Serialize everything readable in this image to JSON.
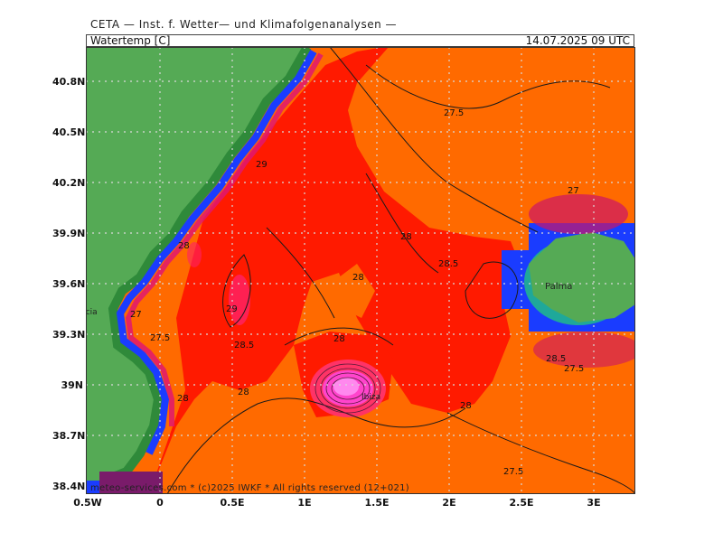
{
  "header": {
    "institute": "CETA — Inst. f. Wetter— und Klimafolgenanalysen —",
    "variable": "Watertemp [C]",
    "datetime": "14.07.2025 09 UTC"
  },
  "axes": {
    "lat_ticks": [
      "40.8N",
      "40.5N",
      "40.2N",
      "39.9N",
      "39.6N",
      "39.3N",
      "39N",
      "38.7N",
      "38.4N"
    ],
    "lon_ticks": [
      "0.5W",
      "0",
      "0.5E",
      "1E",
      "1.5E",
      "2E",
      "2.5E",
      "3E"
    ]
  },
  "places": {
    "valencia": "Valencia",
    "palma": "Palma",
    "ibiza": "Ibiza"
  },
  "contour_labels": [
    {
      "id": "275-north",
      "text": "27.5"
    },
    {
      "id": "29-north",
      "text": "29"
    },
    {
      "id": "27-mallorca",
      "text": "27"
    },
    {
      "id": "28-center",
      "text": "28"
    },
    {
      "id": "285-center",
      "text": "28.5"
    },
    {
      "id": "28-valencia",
      "text": "28"
    },
    {
      "id": "28-mid",
      "text": "28"
    },
    {
      "id": "29-west",
      "text": "29"
    },
    {
      "id": "27-valencia",
      "text": "27"
    },
    {
      "id": "275-valencia",
      "text": "27.5"
    },
    {
      "id": "285-west",
      "text": "28.5"
    },
    {
      "id": "28-ibiza-n",
      "text": "28"
    },
    {
      "id": "28-south-w",
      "text": "28"
    },
    {
      "id": "28-ibiza-w",
      "text": "28"
    },
    {
      "id": "28-east",
      "text": "28"
    },
    {
      "id": "285-mallorca",
      "text": "28.5"
    },
    {
      "id": "275-mallorca",
      "text": "27.5"
    },
    {
      "id": "275-south",
      "text": "27.5"
    }
  ],
  "colors": {
    "land": "#4fa84f",
    "water_warm": "#ff6600",
    "water_hot": "#ff0000",
    "coastal": "#1a5cff",
    "hotspot": "#ff44dd"
  },
  "footer": {
    "copyright": "meteo-services.com * (c)2025 IWKF * All rights reserved (12+021)"
  }
}
